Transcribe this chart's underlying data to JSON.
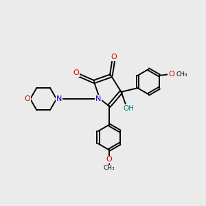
{
  "bg_color": "#ebebeb",
  "atom_colors": {
    "C": "#000000",
    "N": "#0000cc",
    "O": "#dd0000",
    "H": "#008080"
  },
  "bond_color": "#000000",
  "bond_width": 1.4,
  "figsize": [
    3.0,
    3.0
  ],
  "dpi": 100,
  "xlim": [
    0,
    10
  ],
  "ylim": [
    0,
    10
  ]
}
